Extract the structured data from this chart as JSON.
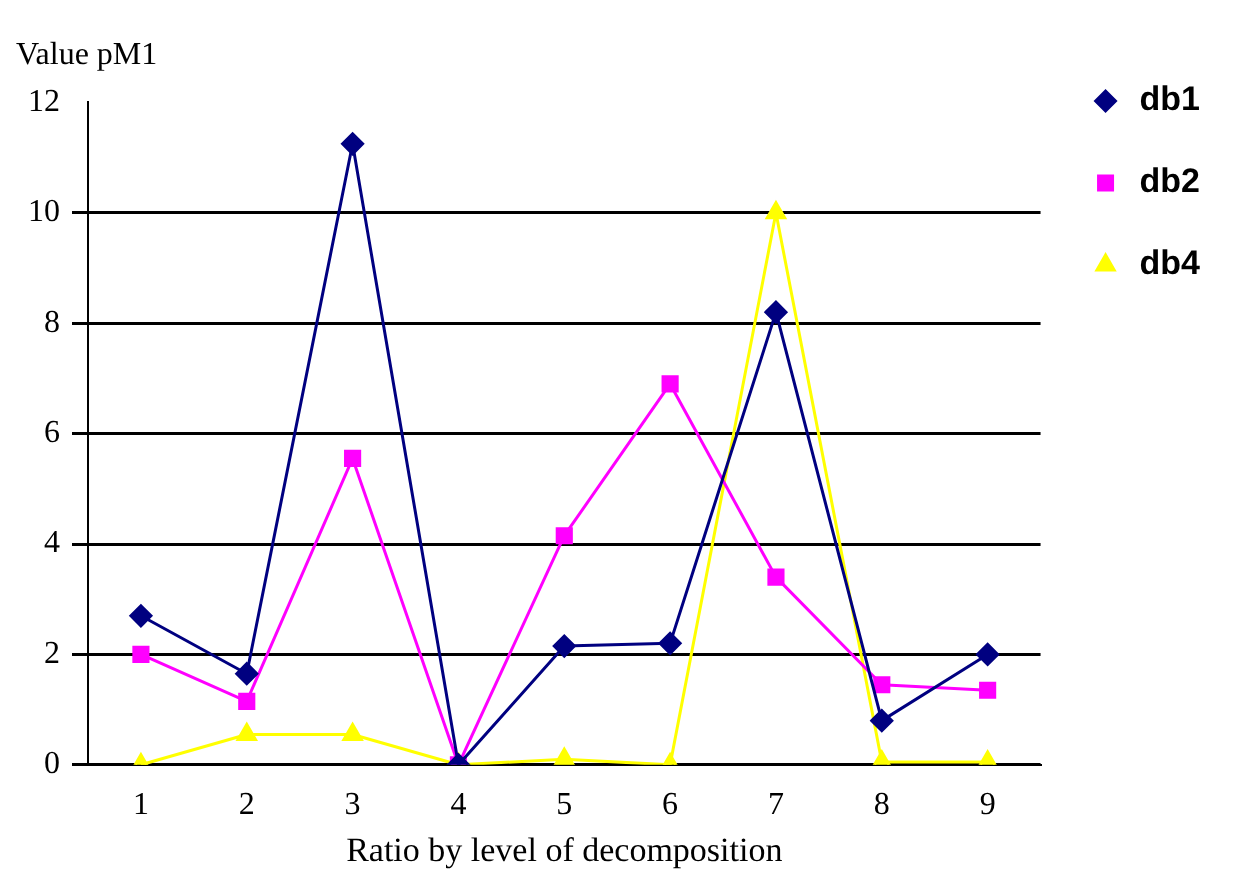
{
  "chart_data": {
    "type": "line",
    "ylabel": "Value pM1",
    "xlabel": "Ratio by level of decomposition",
    "categories": [
      "1",
      "2",
      "3",
      "4",
      "5",
      "6",
      "7",
      "8",
      "9"
    ],
    "series": [
      {
        "name": "db1",
        "color": "#000080",
        "marker": "diamond",
        "values": [
          2.7,
          1.65,
          11.25,
          0,
          2.15,
          2.2,
          8.2,
          0.8,
          2.0
        ]
      },
      {
        "name": "db2",
        "color": "#ff00ff",
        "marker": "square",
        "values": [
          2.0,
          1.15,
          5.55,
          0,
          4.15,
          6.9,
          3.4,
          1.45,
          1.35
        ]
      },
      {
        "name": "db4",
        "color": "#ffff00",
        "marker": "triangle",
        "values": [
          0,
          0.55,
          0.55,
          0,
          0.1,
          0,
          10,
          0.05,
          0.05
        ]
      }
    ],
    "ylim": [
      0,
      12
    ],
    "yticks": [
      0,
      2,
      4,
      6,
      8,
      10,
      12
    ],
    "grid": "y",
    "legend": "right"
  }
}
